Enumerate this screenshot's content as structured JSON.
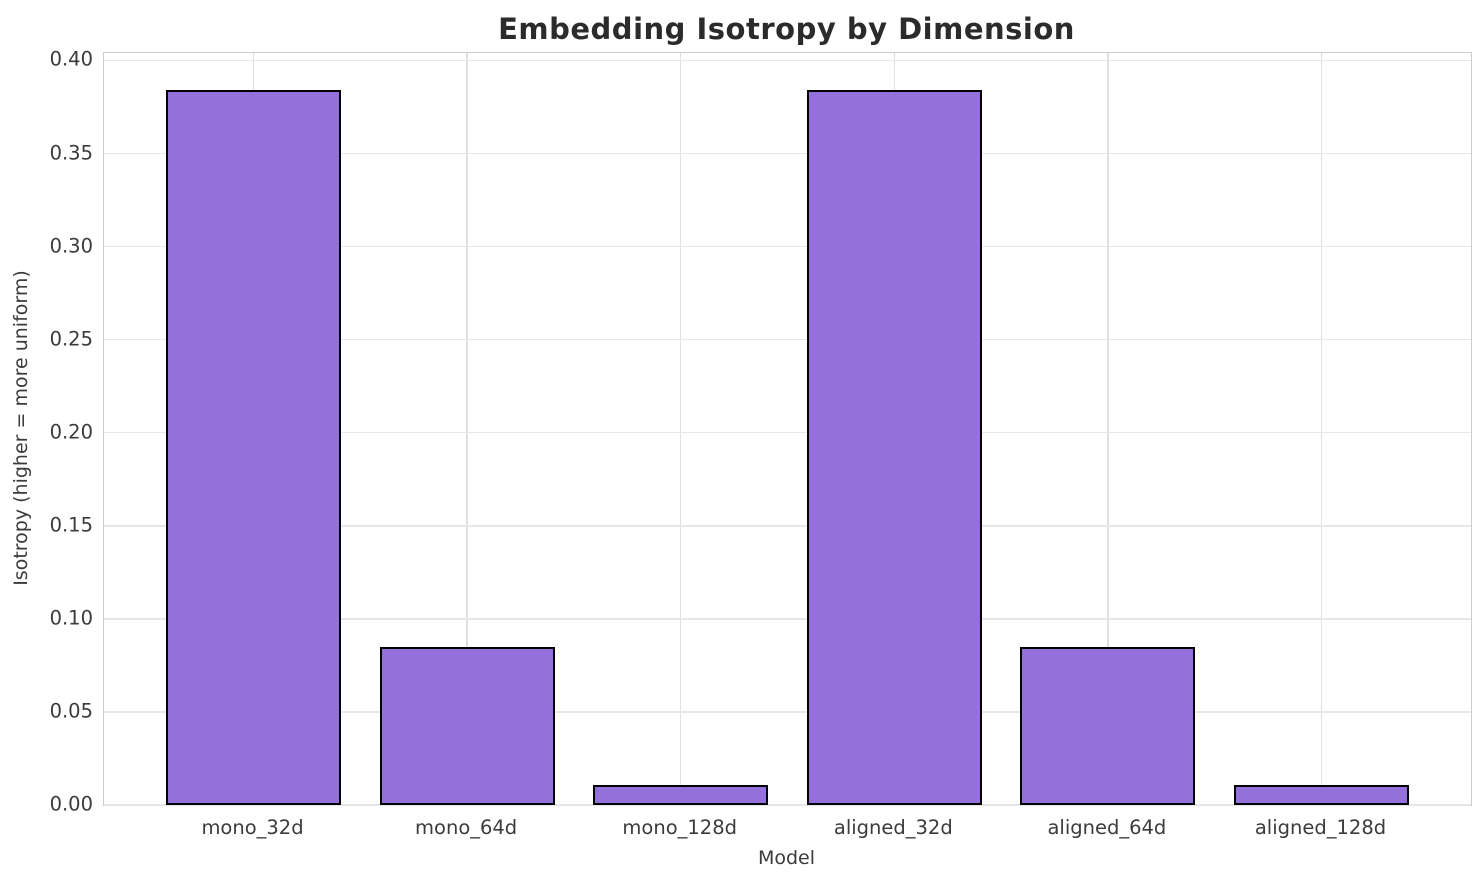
{
  "figure": {
    "background_color": "#ffffff",
    "text_color": "#3b3b3b",
    "title_color": "#2b2b2b"
  },
  "chart_data": {
    "type": "bar",
    "title": "Embedding Isotropy by Dimension",
    "xlabel": "Model",
    "ylabel": "Isotropy (higher = more uniform)",
    "categories": [
      "mono_32d",
      "mono_64d",
      "mono_128d",
      "aligned_32d",
      "aligned_64d",
      "aligned_128d"
    ],
    "values": [
      0.384,
      0.085,
      0.011,
      0.384,
      0.085,
      0.011
    ],
    "ylim": [
      0,
      0.404
    ],
    "ytick_labels": [
      "0.00",
      "0.05",
      "0.10",
      "0.15",
      "0.20",
      "0.25",
      "0.30",
      "0.35",
      "0.40"
    ],
    "grid": true,
    "legend": "none",
    "bar_color": "#9370DB",
    "bar_edge_color": "#000000",
    "gridline_color": "#e7e7e7",
    "spine_color": "#cccccc"
  }
}
